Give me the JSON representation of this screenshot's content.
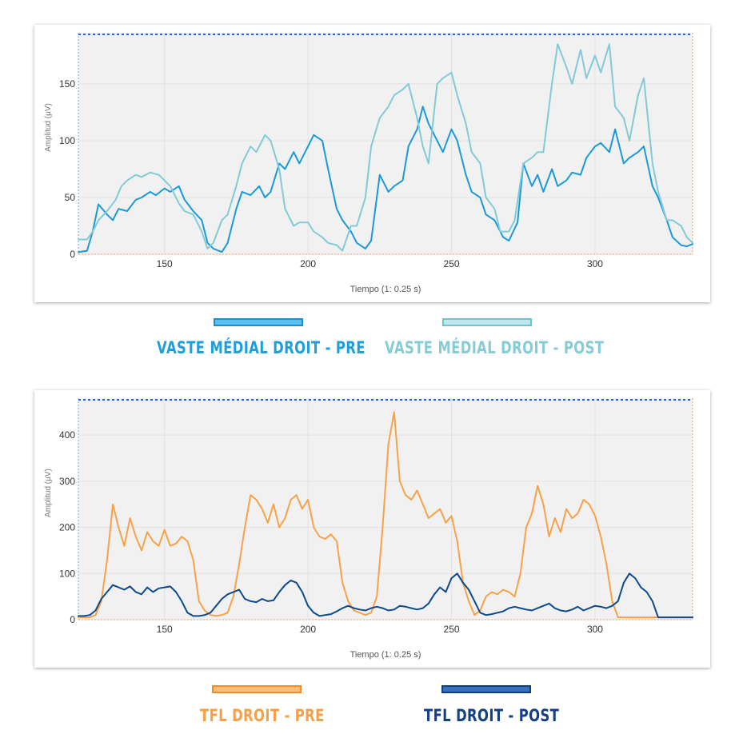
{
  "colors": {
    "vm_pre": "#1a9ad9",
    "vm_post": "#82cbd6",
    "tfl_pre": "#f7a247",
    "tfl_post": "#0d4a8c",
    "vm_pre_label": "#1e9fdc",
    "vm_post_label": "#86ccd6",
    "tfl_pre_label": "#f5a049",
    "tfl_post_label": "#143f85"
  },
  "chart_data": [
    {
      "type": "line",
      "xlabel": "Tiempo (1: 0.25 s)",
      "ylabel": "Amplitud (µV)",
      "xlim": [
        120,
        334
      ],
      "ylim": [
        0,
        195
      ],
      "x_ticks": [
        150,
        200,
        250,
        300
      ],
      "y_ticks": [
        0,
        50,
        100,
        150
      ],
      "grid": true,
      "series": [
        {
          "name": "VASTE MÉDIAL  DROIT - PRE",
          "x": [
            120,
            123,
            125,
            127,
            130,
            132,
            134,
            137,
            140,
            142,
            145,
            147,
            150,
            152,
            155,
            157,
            160,
            163,
            165,
            167,
            170,
            172,
            175,
            177,
            180,
            183,
            185,
            187,
            190,
            192,
            195,
            197,
            200,
            202,
            205,
            207,
            210,
            212,
            215,
            217,
            220,
            222,
            225,
            228,
            230,
            233,
            235,
            238,
            240,
            242,
            245,
            247,
            250,
            252,
            255,
            257,
            260,
            262,
            265,
            268,
            270,
            273,
            275,
            278,
            280,
            282,
            285,
            287,
            290,
            292,
            295,
            297,
            300,
            302,
            305,
            307,
            310,
            312,
            315,
            317,
            320,
            322,
            325,
            327,
            330,
            332,
            334
          ],
          "values": [
            2,
            3,
            20,
            44,
            35,
            30,
            40,
            38,
            48,
            50,
            55,
            52,
            58,
            55,
            60,
            48,
            38,
            30,
            10,
            5,
            2,
            10,
            40,
            55,
            52,
            60,
            50,
            55,
            80,
            75,
            90,
            80,
            95,
            105,
            100,
            75,
            40,
            30,
            20,
            10,
            5,
            12,
            70,
            55,
            60,
            65,
            95,
            110,
            130,
            115,
            100,
            90,
            110,
            100,
            70,
            55,
            50,
            35,
            30,
            15,
            12,
            28,
            80,
            60,
            70,
            55,
            75,
            60,
            65,
            72,
            70,
            85,
            95,
            98,
            90,
            110,
            80,
            85,
            90,
            95,
            60,
            50,
            30,
            15,
            8,
            7,
            9
          ]
        },
        {
          "name": "VASTE MÉDIAL DROIT - POST",
          "x": [
            120,
            123,
            125,
            127,
            130,
            133,
            135,
            137,
            140,
            142,
            145,
            148,
            150,
            152,
            155,
            157,
            160,
            163,
            165,
            167,
            170,
            172,
            175,
            177,
            180,
            182,
            185,
            187,
            190,
            192,
            195,
            197,
            200,
            202,
            205,
            207,
            210,
            212,
            215,
            217,
            220,
            222,
            225,
            228,
            230,
            233,
            235,
            238,
            240,
            242,
            245,
            247,
            250,
            252,
            255,
            257,
            260,
            262,
            265,
            267,
            270,
            272,
            275,
            278,
            280,
            282,
            285,
            287,
            290,
            292,
            295,
            297,
            300,
            302,
            305,
            307,
            310,
            312,
            315,
            317,
            320,
            322,
            325,
            327,
            330,
            332,
            334
          ],
          "values": [
            13,
            13,
            20,
            30,
            38,
            48,
            60,
            65,
            70,
            68,
            72,
            70,
            65,
            60,
            45,
            38,
            35,
            20,
            5,
            10,
            30,
            35,
            60,
            80,
            95,
            90,
            105,
            100,
            75,
            40,
            25,
            28,
            28,
            20,
            15,
            10,
            8,
            3,
            25,
            25,
            50,
            95,
            120,
            130,
            140,
            145,
            150,
            120,
            95,
            80,
            150,
            155,
            160,
            140,
            115,
            90,
            80,
            50,
            40,
            20,
            20,
            30,
            80,
            85,
            90,
            90,
            150,
            185,
            165,
            150,
            180,
            155,
            175,
            160,
            185,
            130,
            120,
            100,
            140,
            155,
            80,
            55,
            30,
            30,
            25,
            15,
            10
          ]
        }
      ]
    },
    {
      "type": "line",
      "xlabel": "Tiempo (1: 0.25 s)",
      "ylabel": "Amplitud (µV)",
      "xlim": [
        120,
        334
      ],
      "ylim": [
        0,
        480
      ],
      "x_ticks": [
        150,
        200,
        250,
        300
      ],
      "y_ticks": [
        0,
        100,
        200,
        300,
        400
      ],
      "grid": true,
      "series": [
        {
          "name": "TFL DROIT - PRE",
          "x": [
            120,
            122,
            124,
            126,
            128,
            130,
            132,
            134,
            136,
            138,
            140,
            142,
            144,
            146,
            148,
            150,
            152,
            154,
            156,
            158,
            160,
            162,
            164,
            166,
            168,
            170,
            172,
            174,
            176,
            178,
            180,
            182,
            184,
            186,
            188,
            190,
            192,
            194,
            196,
            198,
            200,
            202,
            204,
            206,
            208,
            210,
            212,
            214,
            216,
            218,
            220,
            222,
            224,
            226,
            228,
            230,
            232,
            234,
            236,
            238,
            240,
            242,
            244,
            246,
            248,
            250,
            252,
            254,
            256,
            258,
            260,
            262,
            264,
            266,
            268,
            270,
            272,
            274,
            276,
            278,
            280,
            282,
            284,
            286,
            288,
            290,
            292,
            294,
            296,
            298,
            300,
            302,
            304,
            306,
            308,
            310,
            312,
            314,
            316,
            318,
            320,
            322,
            324,
            326,
            328,
            330,
            332,
            334
          ],
          "values": [
            5,
            5,
            5,
            10,
            40,
            130,
            250,
            200,
            160,
            220,
            180,
            150,
            190,
            170,
            160,
            195,
            160,
            165,
            180,
            170,
            130,
            40,
            20,
            10,
            8,
            10,
            15,
            50,
            120,
            200,
            270,
            260,
            240,
            210,
            250,
            200,
            220,
            260,
            270,
            240,
            260,
            200,
            180,
            175,
            185,
            170,
            80,
            40,
            20,
            15,
            10,
            15,
            50,
            200,
            380,
            450,
            300,
            270,
            260,
            280,
            250,
            220,
            230,
            240,
            210,
            225,
            170,
            80,
            40,
            10,
            20,
            50,
            60,
            55,
            65,
            60,
            50,
            100,
            200,
            230,
            290,
            250,
            180,
            220,
            190,
            240,
            220,
            230,
            260,
            250,
            225,
            180,
            120,
            40,
            5,
            5,
            5,
            5,
            5,
            5,
            5,
            5,
            5,
            5,
            5,
            5,
            5,
            5
          ]
        },
        {
          "name": "TFL DROIT - POST",
          "x": [
            120,
            122,
            124,
            126,
            128,
            130,
            132,
            134,
            136,
            138,
            140,
            142,
            144,
            146,
            148,
            150,
            152,
            154,
            156,
            158,
            160,
            162,
            164,
            166,
            168,
            170,
            172,
            174,
            176,
            178,
            180,
            182,
            184,
            186,
            188,
            190,
            192,
            194,
            196,
            198,
            200,
            202,
            204,
            206,
            208,
            210,
            212,
            214,
            216,
            218,
            220,
            222,
            224,
            226,
            228,
            230,
            232,
            234,
            236,
            238,
            240,
            242,
            244,
            246,
            248,
            250,
            252,
            254,
            256,
            258,
            260,
            262,
            264,
            266,
            268,
            270,
            272,
            274,
            276,
            278,
            280,
            282,
            284,
            286,
            288,
            290,
            292,
            294,
            296,
            298,
            300,
            302,
            304,
            306,
            308,
            310,
            312,
            314,
            316,
            318,
            320,
            322,
            324,
            326,
            328,
            330,
            332,
            334
          ],
          "values": [
            8,
            8,
            10,
            20,
            45,
            60,
            75,
            70,
            65,
            72,
            60,
            55,
            70,
            60,
            68,
            70,
            72,
            60,
            40,
            15,
            8,
            8,
            10,
            15,
            30,
            45,
            55,
            60,
            65,
            45,
            40,
            38,
            45,
            40,
            42,
            60,
            75,
            85,
            80,
            60,
            30,
            15,
            8,
            10,
            12,
            18,
            25,
            30,
            25,
            22,
            20,
            25,
            28,
            25,
            20,
            22,
            30,
            28,
            25,
            22,
            25,
            35,
            55,
            70,
            60,
            90,
            100,
            80,
            65,
            40,
            15,
            10,
            12,
            15,
            18,
            25,
            28,
            25,
            22,
            20,
            25,
            30,
            35,
            25,
            20,
            18,
            22,
            28,
            20,
            25,
            30,
            28,
            25,
            30,
            40,
            80,
            100,
            90,
            70,
            60,
            40,
            5,
            5,
            5,
            5,
            5,
            5,
            5
          ]
        }
      ]
    }
  ],
  "legend_top": {
    "pre_label": "VASTE MÉDIAL  DROIT - PRE",
    "post_label": "VASTE MÉDIAL DROIT - POST"
  },
  "legend_bottom": {
    "pre_label": "TFL DROIT - PRE",
    "post_label": "TFL DROIT - POST"
  }
}
